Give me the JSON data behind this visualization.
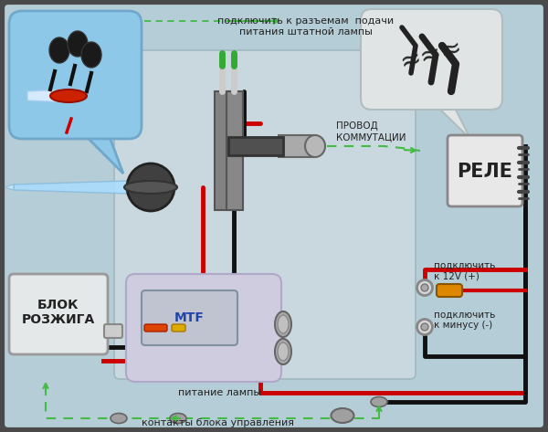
{
  "bg_outer": "#4a4a4a",
  "bg_main": "#b5cdd6",
  "bg_inner_gray": "#c8d8de",
  "bg_inner_lighter": "#d4e2e8",
  "bubble_blue": "#8ec8e8",
  "bubble_blue_edge": "#70a8cc",
  "bubble_right_bg": "#e0e4e4",
  "bubble_right_edge": "#b0bcc0",
  "relay_bg": "#e8e8e8",
  "relay_edge": "#888888",
  "blok_bg": "#e4e8e8",
  "blok_edge": "#999999",
  "ignition_inner_bg": "#d0cce0",
  "ignition_inner_edge": "#b0a8c8",
  "lamp_beam_color": "#b8eeff",
  "lamp_body_color": "#606060",
  "lamp_ring_color": "#cc3322",
  "wire_red": "#cc0000",
  "wire_black": "#111111",
  "wire_green": "#33aa33",
  "wire_dashed_green": "#44bb44",
  "connector_gray": "#909090",
  "connector_light": "#c0c0c0",
  "orange_connector": "#dd8800",
  "text_dark": "#222222",
  "text_label": "#333333",
  "label_top1": "подключить к разъемам  подачи",
  "label_top2": "питания штатной лампы",
  "label_commut1": "ПРОВОД",
  "label_commut2": "КОММУТАЦИИ",
  "label_rele": "РЕЛЕ",
  "label_blok1": "БЛОК",
  "label_blok2": "РОЗЖИГА",
  "label_питание": "питание лампы",
  "label_kontakty": "контакты блока управления",
  "label_12v_1": "подключить",
  "label_12v_2": "к 12V (+)",
  "label_minus_1": "подключить",
  "label_minus_2": "к минусу (-)"
}
